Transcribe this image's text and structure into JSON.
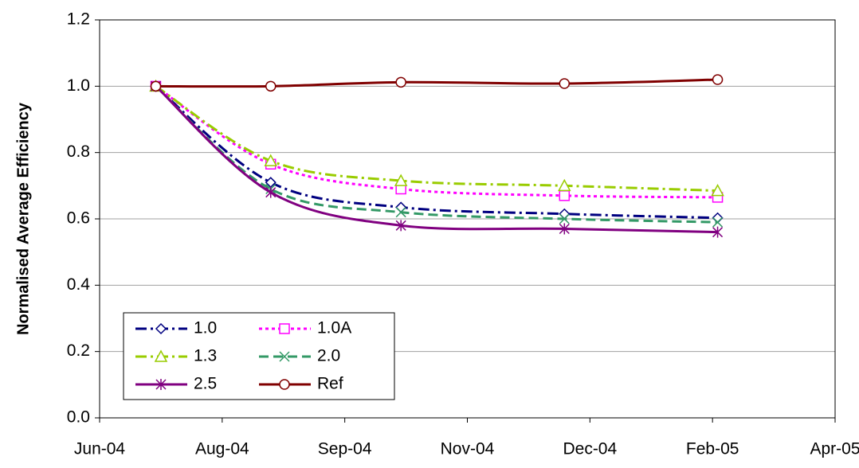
{
  "chart_data": {
    "type": "line",
    "y_label": "Normalised Average Efficiency",
    "x": [
      38180,
      38225,
      38276,
      38340,
      38400
    ],
    "xlim": [
      38158,
      38446
    ],
    "xticks": [
      {
        "value": 38158,
        "label": "Jun-04"
      },
      {
        "value": 38206,
        "label": "Aug-04"
      },
      {
        "value": 38254,
        "label": "Sep-04"
      },
      {
        "value": 38302,
        "label": "Nov-04"
      },
      {
        "value": 38350,
        "label": "Dec-04"
      },
      {
        "value": 38398,
        "label": "Feb-05"
      },
      {
        "value": 38446,
        "label": "Apr-05"
      }
    ],
    "ylim": [
      0,
      1.2
    ],
    "yticks": [
      {
        "value": 0,
        "label": "0.0"
      },
      0.2,
      0.4,
      0.6,
      0.8,
      {
        "value": 1,
        "label": "1.0"
      },
      1.2
    ],
    "grid": true,
    "legend": "lower left",
    "series": [
      {
        "name": "1.0",
        "color": "#000080",
        "marker": "diamond",
        "dash": "dash-dot",
        "values": [
          1.0,
          0.71,
          0.635,
          0.615,
          0.603
        ]
      },
      {
        "name": "1.0A",
        "color": "#FF00FF",
        "marker": "square",
        "dash": "dot",
        "values": [
          1.0,
          0.765,
          0.69,
          0.67,
          0.665
        ]
      },
      {
        "name": "1.3",
        "color": "#99CC00",
        "marker": "triangle",
        "dash": "dash-dot",
        "values": [
          1.0,
          0.775,
          0.715,
          0.7,
          0.685
        ]
      },
      {
        "name": "2.0",
        "color": "#339966",
        "marker": "x",
        "dash": "dash",
        "values": [
          1.0,
          0.69,
          0.62,
          0.6,
          0.59
        ]
      },
      {
        "name": "2.5",
        "color": "#800080",
        "marker": "star",
        "dash": "solid",
        "values": [
          1.0,
          0.68,
          0.58,
          0.57,
          0.56
        ]
      },
      {
        "name": "Ref",
        "color": "#800000",
        "marker": "circle",
        "dash": "solid",
        "values": [
          1.0,
          1.0,
          1.012,
          1.008,
          1.02
        ]
      }
    ]
  }
}
